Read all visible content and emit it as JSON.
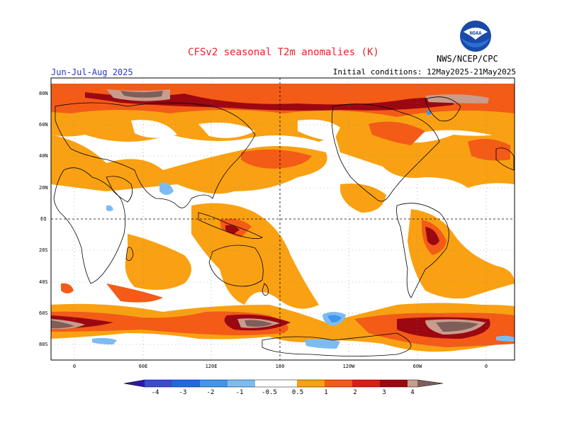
{
  "header": {
    "title": "CFSv2 seasonal T2m anomalies (K)",
    "period": "Jun-Jul-Aug 2025",
    "initial_conditions": "Initial conditions: 12May2025-21May2025",
    "organization": "NWS/NCEP/CPC",
    "logo_text": "NOAA"
  },
  "map": {
    "lat_labels": [
      "80N",
      "60N",
      "40N",
      "20N",
      "EQ",
      "20S",
      "40S",
      "60S",
      "80S"
    ],
    "lon_labels": [
      "0",
      "60E",
      "120E",
      "180",
      "120W",
      "60W",
      "0"
    ]
  },
  "legend": {
    "ticks": [
      "-4",
      "-3",
      "-2",
      "-1",
      "-0.5",
      "0.5",
      "1",
      "2",
      "3",
      "4"
    ],
    "colors": [
      "#2c19a8",
      "#3c4ccc",
      "#1f6ae0",
      "#3f96ee",
      "#7cbcf3",
      "#ffffff",
      "#f9a112",
      "#f35b17",
      "#d81f16",
      "#9c0811",
      "#c99c8c",
      "#7f5e59"
    ]
  }
}
